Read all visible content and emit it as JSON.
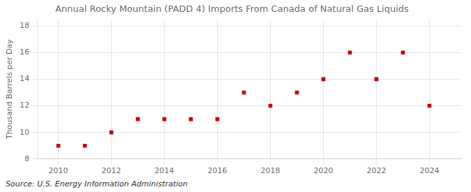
{
  "chart_data": {
    "type": "scatter",
    "title": "Annual Rocky Mountain (PADD 4) Imports From Canada of Natural Gas Liquids",
    "ylabel": "Thousand Barrels per Day",
    "annotation": "Source: U.S. Energy Information Administration",
    "x": [
      2010,
      2011,
      2012,
      2013,
      2014,
      2015,
      2016,
      2017,
      2018,
      2019,
      2020,
      2021,
      2022,
      2023,
      2024
    ],
    "values": [
      9,
      9,
      10,
      11,
      11,
      11,
      11,
      13,
      12,
      13,
      14,
      16,
      14,
      16,
      12
    ],
    "color": "#cc0000",
    "marker": "square",
    "xlim": [
      2009.2,
      2025.2
    ],
    "xticks": [
      2010,
      2012,
      2014,
      2016,
      2018,
      2020,
      2022,
      2024
    ],
    "ylim": [
      8,
      18.5
    ],
    "yticks": [
      8,
      10,
      12,
      14,
      16,
      18
    ],
    "grid": true
  }
}
